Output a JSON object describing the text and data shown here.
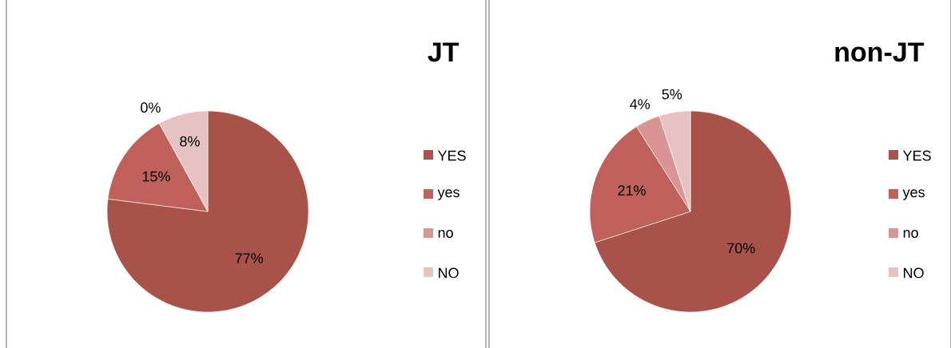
{
  "chart_data": [
    {
      "type": "pie",
      "title": "JT",
      "categories": [
        "YES",
        "yes",
        "no",
        "NO"
      ],
      "values": [
        77,
        15,
        0,
        8
      ],
      "colors": [
        "#a9524a",
        "#c0605a",
        "#d99594",
        "#e6c3c2"
      ],
      "value_labels": [
        "77%",
        "15%",
        "0%",
        "8%"
      ],
      "legend": "right"
    },
    {
      "type": "pie",
      "title": "non-JT",
      "categories": [
        "YES",
        "yes",
        "no",
        "NO"
      ],
      "values": [
        70,
        21,
        4,
        5
      ],
      "colors": [
        "#a9524a",
        "#c0605a",
        "#d99594",
        "#e6c3c2"
      ],
      "value_labels": [
        "70%",
        "21%",
        "4%",
        "5%"
      ],
      "legend": "right"
    }
  ]
}
